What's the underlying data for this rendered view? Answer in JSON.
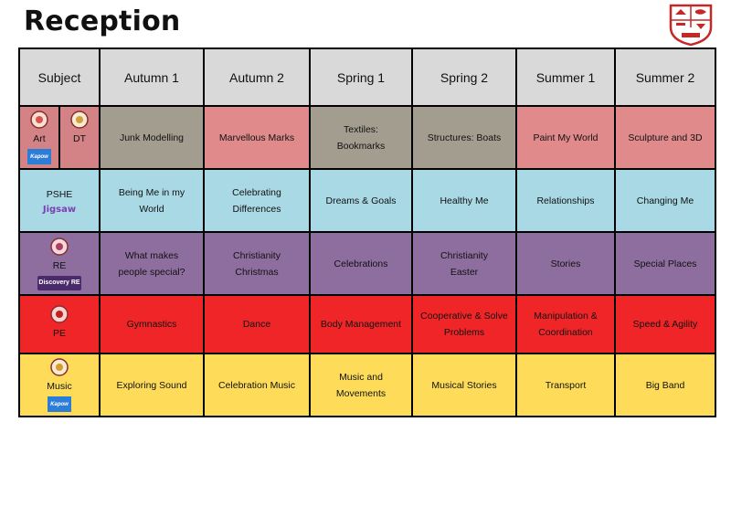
{
  "title": "Reception",
  "header": {
    "subject": "Subject",
    "terms": [
      "Autumn 1",
      "Autumn 2",
      "Spring 1",
      "Spring 2",
      "Summer 1",
      "Summer 2"
    ]
  },
  "subjects": {
    "art": "Art",
    "dt": "DT",
    "kapow_logo": "Kapow",
    "pshe": "PSHE",
    "jigsaw_logo": "Jigsaw",
    "re": "RE",
    "discovery_logo": "Discovery RE",
    "pe": "PE",
    "music": "Music",
    "kapow_logo_music": "Kapow"
  },
  "rows": {
    "art_dt": [
      "Junk Modelling",
      "Marvellous Marks",
      "Textiles: Bookmarks",
      "Structures: Boats",
      "Paint My World",
      "Sculpture and 3D"
    ],
    "pshe": [
      "Being Me in my World",
      "Celebrating Differences",
      "Dreams & Goals",
      "Healthy Me",
      "Relationships",
      "Changing Me"
    ],
    "re": [
      "What makes people special?",
      "Christianity Christmas",
      "Celebrations",
      "Christianity Easter",
      "Stories",
      "Special Places"
    ],
    "pe": [
      "Gymnastics",
      "Dance",
      "Body Management",
      "Cooperative & Solve Problems",
      "Manipulation & Coordination",
      "Speed & Agility"
    ],
    "music": [
      "Exploring Sound",
      "Celebration Music",
      "Music and Movements",
      "Musical Stories",
      "Transport",
      "Big Band"
    ]
  },
  "colors": {
    "header": "#d9d9d9",
    "art_grey": "#a29d8e",
    "art_pink": "#e18a8c",
    "pshe": "#aad9e6",
    "re": "#8e6e9e",
    "pe": "#f02527",
    "music": "#fedc5a"
  }
}
